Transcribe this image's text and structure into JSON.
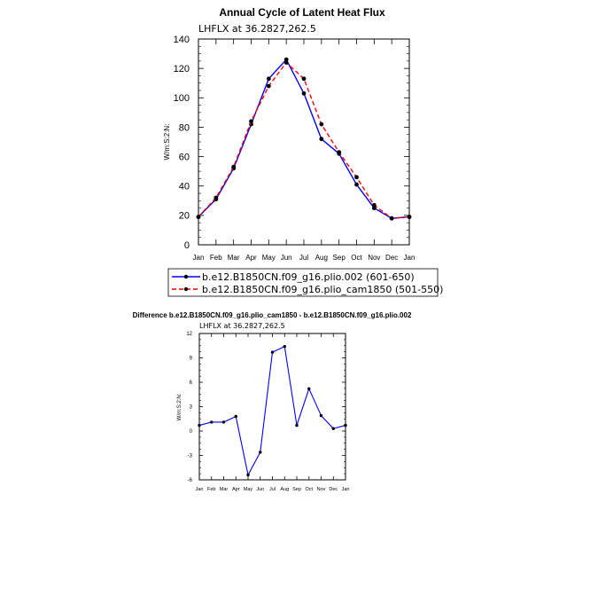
{
  "chart_data": [
    {
      "type": "line",
      "title": "Annual Cycle of Latent Heat Flux",
      "subtitle": "LHFLX at 36.2827,262.5",
      "ylabel": "W/m:S:2:N:",
      "xlabel": "",
      "categories": [
        "Jan",
        "Feb",
        "Mar",
        "Apr",
        "May",
        "Jun",
        "Jul",
        "Aug",
        "Sep",
        "Oct",
        "Nov",
        "Dec",
        "Jan"
      ],
      "ylim": [
        0,
        140
      ],
      "yticks": [
        "0",
        "20",
        "40",
        "60",
        "80",
        "100",
        "120",
        "140"
      ],
      "legend_position": "bottom",
      "grid": false,
      "series": [
        {
          "name": "b.e12.B1850CN.f09_g16.plio.002 (601-650)",
          "color": "#0000ff",
          "dash": "solid",
          "values": [
            19,
            31,
            52,
            82,
            113,
            126,
            103,
            72,
            62,
            41,
            25,
            18,
            19
          ]
        },
        {
          "name": "b.e12.B1850CN.f09_g16.plio_cam1850 (501-550)",
          "color": "#ff0000",
          "dash": "dashed",
          "values": [
            19,
            32,
            53,
            84,
            108,
            124,
            113,
            82,
            63,
            46,
            27,
            18,
            19
          ]
        }
      ]
    },
    {
      "type": "line",
      "title": "Difference b.e12.B1850CN.f09_g16.plio_cam1850 - b.e12.B1850CN.f09_g16.plio.002",
      "subtitle": "LHFLX at 36.2827,262.5",
      "ylabel": "W/m:S:2:N:",
      "xlabel": "",
      "categories": [
        "Jan",
        "Feb",
        "Mar",
        "Apr",
        "May",
        "Jun",
        "Jul",
        "Aug",
        "Sep",
        "Oct",
        "Nov",
        "Dec",
        "Jan"
      ],
      "ylim": [
        -6,
        12
      ],
      "yticks": [
        "-6",
        "-3",
        "0",
        "3",
        "6",
        "9",
        "12"
      ],
      "grid": false,
      "series": [
        {
          "color": "#0000ff",
          "dash": "solid",
          "values": [
            0.7,
            1.1,
            1.1,
            1.8,
            -5.4,
            -2.6,
            9.7,
            10.4,
            0.7,
            5.2,
            1.9,
            0.3,
            0.7
          ]
        }
      ]
    }
  ]
}
